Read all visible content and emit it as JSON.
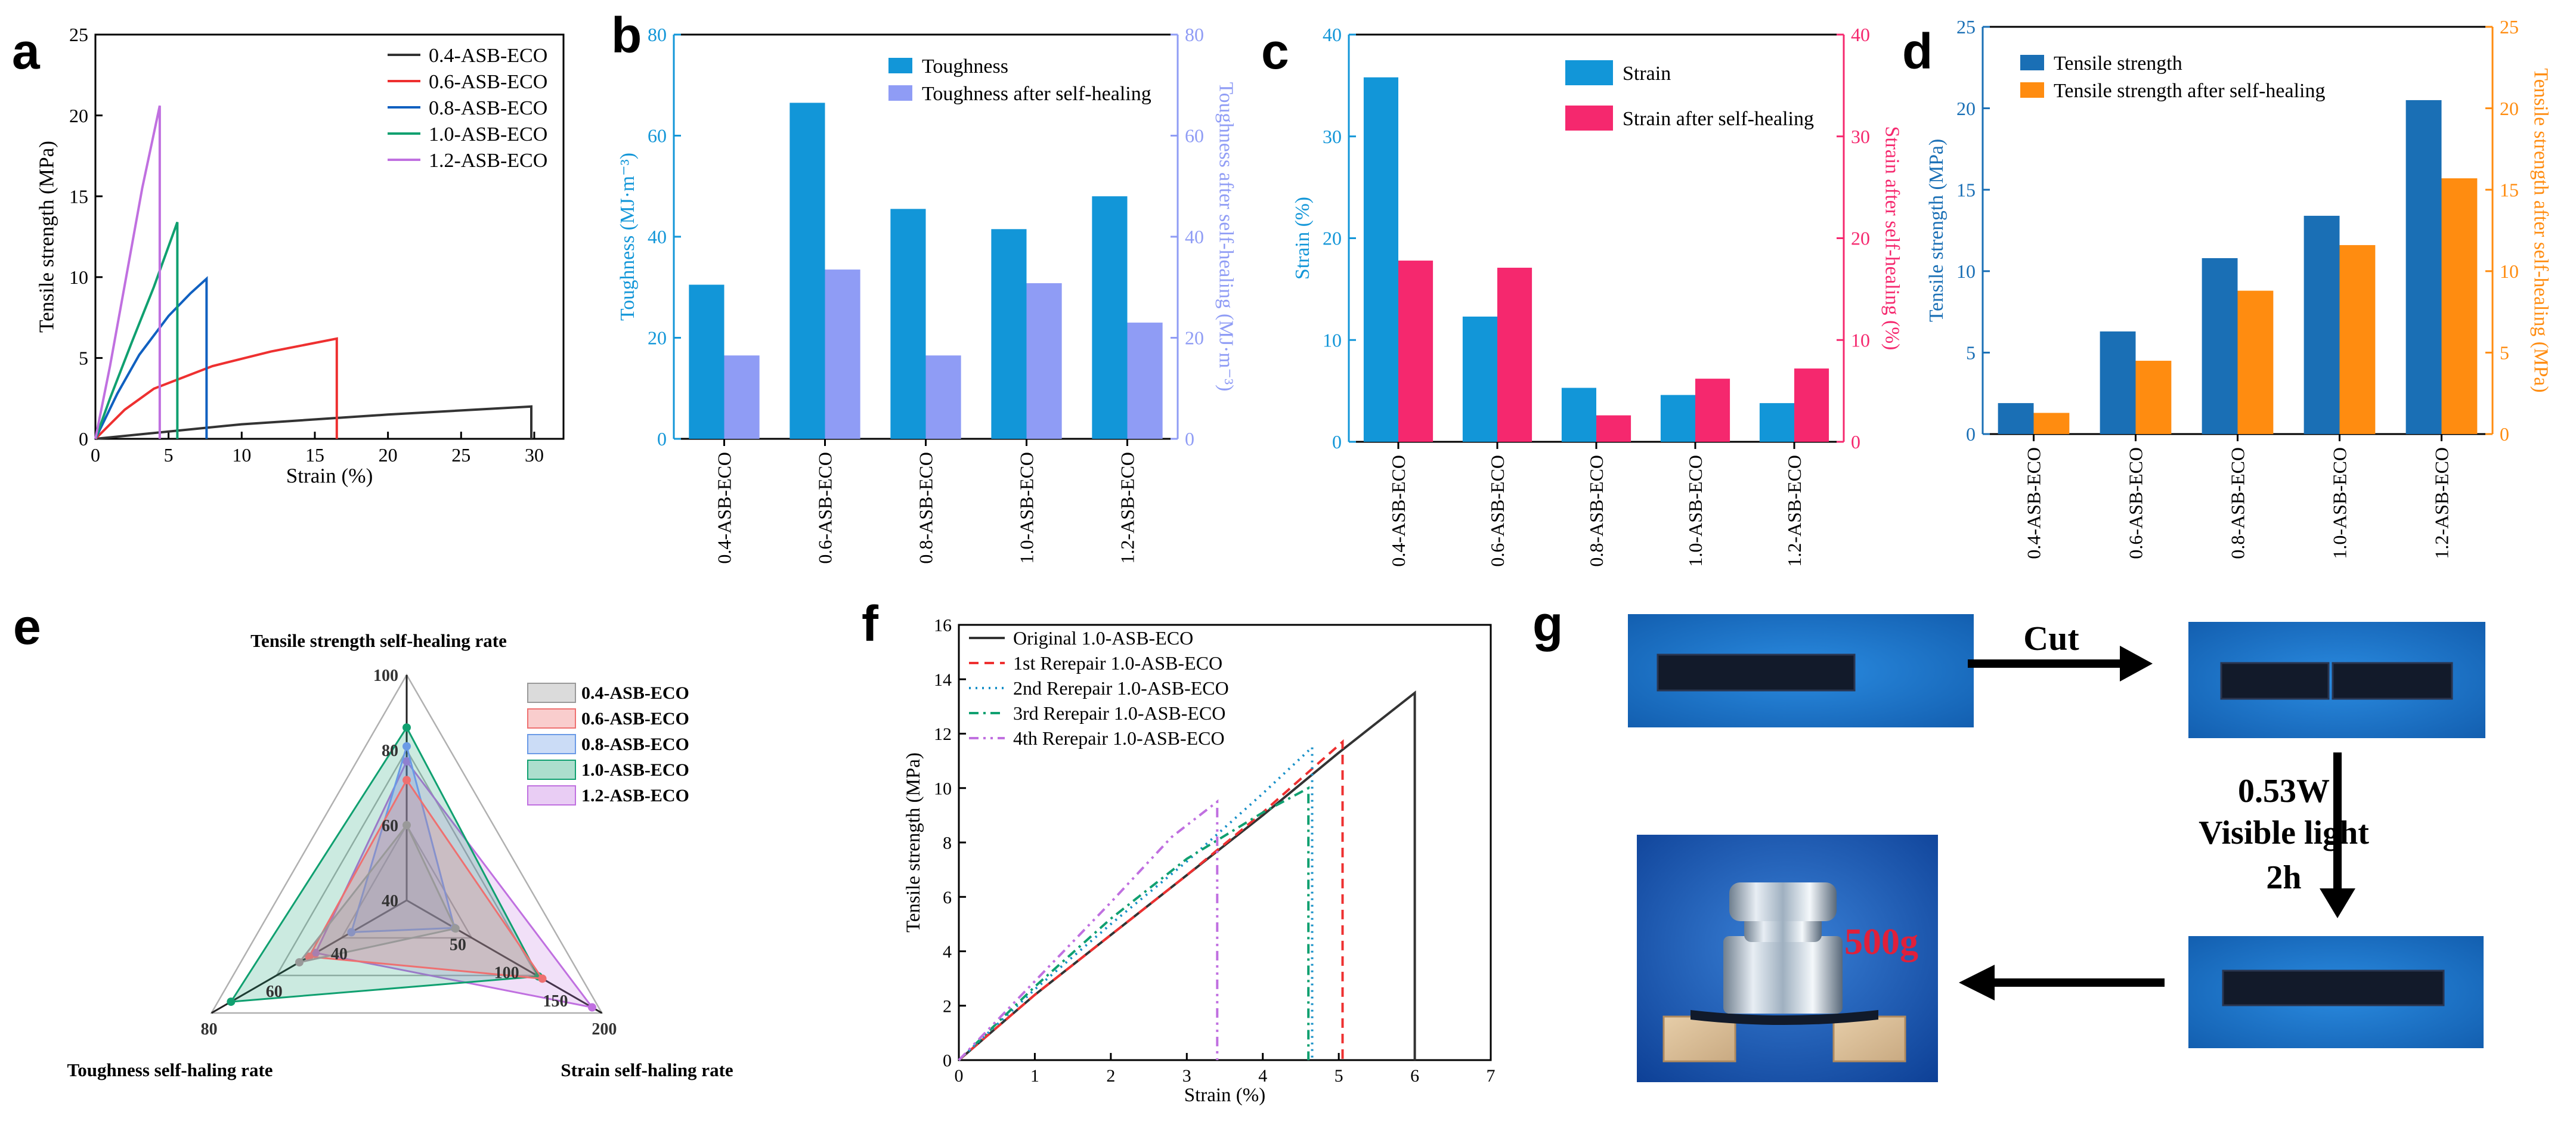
{
  "panels": [
    "a",
    "b",
    "c",
    "d",
    "e",
    "f",
    "g"
  ],
  "colors": {
    "black": "#333333",
    "red": "#ee3030",
    "blue": "#1060c0",
    "green": "#10a070",
    "purple": "#c070e0",
    "bar_blue": "#1296d8",
    "bar_lavender": "#8f9cf5",
    "bar_pink": "#f5286e",
    "bar_navy": "#1a6fb5",
    "bar_orange": "#ff8c10",
    "photo_bg": "#1677cc"
  },
  "chart_data": [
    {
      "panel": "a",
      "type": "line",
      "xlabel": "Strain (%)",
      "ylabel": "Tensile strength (MPa)",
      "xlim": [
        0,
        32
      ],
      "ylim": [
        0,
        25
      ],
      "xticks": [
        "0",
        "5",
        "10",
        "15",
        "20",
        "25",
        "30"
      ],
      "yticks": [
        "0",
        "5",
        "10",
        "15",
        "20",
        "25"
      ],
      "legend_position": "top-right",
      "series": [
        {
          "name": "0.4-ASB-ECO",
          "color": "#333333",
          "points": [
            [
              0,
              0
            ],
            [
              10,
              0.9
            ],
            [
              20,
              1.5
            ],
            [
              29.8,
              2.0
            ],
            [
              29.8,
              0
            ]
          ]
        },
        {
          "name": "0.6-ASB-ECO",
          "color": "#ee3030",
          "points": [
            [
              0,
              0
            ],
            [
              2,
              1.8
            ],
            [
              4,
              3.1
            ],
            [
              8,
              4.5
            ],
            [
              12,
              5.4
            ],
            [
              16.5,
              6.2
            ],
            [
              16.5,
              0
            ]
          ]
        },
        {
          "name": "0.8-ASB-ECO",
          "color": "#1060c0",
          "points": [
            [
              0,
              0
            ],
            [
              1.5,
              2.8
            ],
            [
              3,
              5.2
            ],
            [
              5,
              7.6
            ],
            [
              6.5,
              9.0
            ],
            [
              7.6,
              9.9
            ],
            [
              7.6,
              0
            ]
          ]
        },
        {
          "name": "1.0-ASB-ECO",
          "color": "#10a070",
          "points": [
            [
              0,
              0
            ],
            [
              1,
              2.5
            ],
            [
              2.5,
              6.0
            ],
            [
              4,
              9.4
            ],
            [
              5.6,
              13.4
            ],
            [
              5.6,
              0
            ]
          ]
        },
        {
          "name": "1.2-ASB-ECO",
          "color": "#c070e0",
          "points": [
            [
              0,
              0
            ],
            [
              1,
              4.5
            ],
            [
              2,
              9.5
            ],
            [
              3.2,
              15.5
            ],
            [
              4.4,
              20.6
            ],
            [
              4.4,
              0
            ]
          ]
        }
      ]
    },
    {
      "panel": "b",
      "type": "bar",
      "categories": [
        "0.4-ASB-ECO",
        "0.6-ASB-ECO",
        "0.8-ASB-ECO",
        "1.0-ASB-ECO",
        "1.2-ASB-ECO"
      ],
      "ylabel": "Toughness (MJ·m⁻³)",
      "ylabel_right": "Toughness after self-healing (MJ·m⁻³)",
      "ylim": [
        0,
        80
      ],
      "ylim_right": [
        0,
        80
      ],
      "yticks": [
        "0",
        "20",
        "40",
        "60",
        "80"
      ],
      "legend_position": "top-right",
      "series": [
        {
          "name": "Toughness",
          "axis": "left",
          "color": "#1296d8",
          "values": [
            30.5,
            66.5,
            45.5,
            41.5,
            48
          ]
        },
        {
          "name": "Toughness after self-healing",
          "axis": "right",
          "color": "#8f9cf5",
          "values": [
            16.5,
            33.5,
            16.5,
            30.8,
            23
          ]
        }
      ]
    },
    {
      "panel": "c",
      "type": "bar",
      "categories": [
        "0.4-ASB-ECO",
        "0.6-ASB-ECO",
        "0.8-ASB-ECO",
        "1.0-ASB-ECO",
        "1.2-ASB-ECO"
      ],
      "ylabel": "Strain (%)",
      "ylabel_right": "Strain after self-healing (%)",
      "ylim": [
        0,
        40
      ],
      "ylim_right": [
        0,
        40
      ],
      "yticks": [
        "0",
        "10",
        "20",
        "30",
        "40"
      ],
      "legend_position": "top-right",
      "series": [
        {
          "name": "Strain",
          "axis": "left",
          "color": "#1296d8",
          "values": [
            35.8,
            12.3,
            5.3,
            4.6,
            3.8
          ]
        },
        {
          "name": "Strain after self-healing",
          "axis": "right",
          "color": "#f5286e",
          "values": [
            17.8,
            17.1,
            2.6,
            6.2,
            7.2
          ]
        }
      ]
    },
    {
      "panel": "d",
      "type": "bar",
      "categories": [
        "0.4-ASB-ECO",
        "0.6-ASB-ECO",
        "0.8-ASB-ECO",
        "1.0-ASB-ECO",
        "1.2-ASB-ECO"
      ],
      "ylabel": "Tensile strength (MPa)",
      "ylabel_right": "Tensile strength after self-healing (MPa)",
      "ylim": [
        0,
        25
      ],
      "ylim_right": [
        0,
        25
      ],
      "yticks": [
        "0",
        "5",
        "10",
        "15",
        "20",
        "25"
      ],
      "legend_position": "top-left",
      "series": [
        {
          "name": "Tensile strength",
          "axis": "left",
          "color": "#1a6fb5",
          "values": [
            1.9,
            6.3,
            10.8,
            13.4,
            20.5
          ]
        },
        {
          "name": "Tensile strength after self-healing",
          "axis": "right",
          "color": "#ff8c10",
          "values": [
            1.3,
            4.5,
            8.8,
            11.6,
            15.7
          ]
        }
      ]
    },
    {
      "panel": "e",
      "type": "radar",
      "axes": [
        {
          "name": "Tensile strength self-healing rate",
          "ticks": [
            "40",
            "60",
            "80",
            "100"
          ],
          "range": [
            40,
            100
          ]
        },
        {
          "name": "Strain self-haling rate",
          "ticks": [
            "50",
            "100",
            "150",
            "200"
          ],
          "range": [
            0,
            200
          ]
        },
        {
          "name": "Toughness self-haling rate",
          "ticks": [
            "40",
            "60",
            "80"
          ],
          "range": [
            20,
            80
          ]
        }
      ],
      "legend_position": "top-right",
      "series": [
        {
          "name": "0.4-ASB-ECO",
          "color": "#999999",
          "values": [
            60,
            50,
            53
          ]
        },
        {
          "name": "0.6-ASB-ECO",
          "color": "#ee7070",
          "values": [
            72,
            139,
            50
          ]
        },
        {
          "name": "0.8-ASB-ECO",
          "color": "#6a9ae6",
          "values": [
            81,
            49,
            37
          ]
        },
        {
          "name": "1.0-ASB-ECO",
          "color": "#10a070",
          "values": [
            86,
            135,
            74
          ]
        },
        {
          "name": "1.2-ASB-ECO",
          "color": "#c070e0",
          "values": [
            77,
            190,
            48
          ]
        }
      ]
    },
    {
      "panel": "f",
      "type": "line",
      "xlabel": "Strain (%)",
      "ylabel": "Tensile strength (MPa)",
      "xlim": [
        0,
        7
      ],
      "ylim": [
        0,
        16
      ],
      "xticks": [
        "0",
        "1",
        "2",
        "3",
        "4",
        "5",
        "6",
        "7"
      ],
      "yticks": [
        "0",
        "2",
        "4",
        "6",
        "8",
        "10",
        "12",
        "14",
        "16"
      ],
      "legend_position": "top-left",
      "series": [
        {
          "name": "Original 1.0-ASB-ECO",
          "color": "#333333",
          "dash": "",
          "points": [
            [
              0,
              0
            ],
            [
              1,
              2.4
            ],
            [
              2,
              4.6
            ],
            [
              3,
              6.8
            ],
            [
              4,
              9.0
            ],
            [
              5,
              11.3
            ],
            [
              6.0,
              13.5
            ],
            [
              6.0,
              0
            ]
          ]
        },
        {
          "name": "1st Rerepair 1.0-ASB-ECO",
          "color": "#ee3030",
          "dash": "16,10",
          "points": [
            [
              0,
              0
            ],
            [
              1,
              2.4
            ],
            [
              2,
              4.6
            ],
            [
              3,
              6.8
            ],
            [
              4,
              9.1
            ],
            [
              5.05,
              11.7
            ],
            [
              5.05,
              0
            ]
          ]
        },
        {
          "name": "2nd Rerepair 1.0-ASB-ECO",
          "color": "#1890c8",
          "dash": "3,8",
          "points": [
            [
              0,
              0
            ],
            [
              1,
              2.6
            ],
            [
              2,
              5.0
            ],
            [
              3,
              7.3
            ],
            [
              4,
              9.8
            ],
            [
              4.65,
              11.5
            ],
            [
              4.65,
              0
            ]
          ]
        },
        {
          "name": "3rd Rerepair 1.0-ASB-ECO",
          "color": "#10a070",
          "dash": "16,8,4,8",
          "points": [
            [
              0,
              0
            ],
            [
              1,
              2.7
            ],
            [
              2,
              5.2
            ],
            [
              3,
              7.4
            ],
            [
              4,
              9.1
            ],
            [
              4.6,
              10.0
            ],
            [
              4.6,
              0
            ]
          ]
        },
        {
          "name": "4th Rerepair 1.0-ASB-ECO",
          "color": "#c070e0",
          "dash": "16,8,4,8,4,8",
          "points": [
            [
              0,
              0
            ],
            [
              1,
              2.9
            ],
            [
              2,
              5.8
            ],
            [
              2.8,
              8.2
            ],
            [
              3.4,
              9.5
            ],
            [
              3.4,
              0
            ]
          ]
        }
      ]
    }
  ],
  "photo_g": {
    "cut_label": "Cut",
    "power_label": "0.53W",
    "light_label": "Visible light",
    "time_label": "2h",
    "weight_label": "500g"
  }
}
